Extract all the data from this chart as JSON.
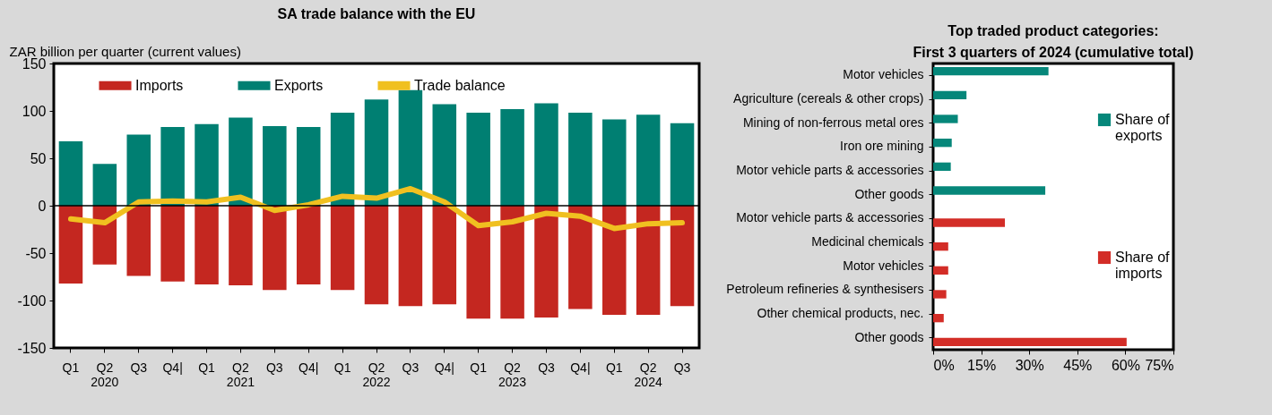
{
  "chart_data": [
    {
      "type": "bar",
      "title": "SA trade balance with the EU",
      "ylabel": "ZAR billion per quarter  (current values)",
      "categories": [
        "Q1",
        "Q2\n2020",
        "Q3",
        "Q4|",
        "Q1",
        "Q2\n2021",
        "Q3",
        "Q4|",
        "Q1",
        "Q2\n2022",
        "Q3",
        "Q4|",
        "Q1",
        "Q2\n2023",
        "Q3",
        "Q4|",
        "Q1",
        "Q2\n2024",
        "Q3"
      ],
      "series": [
        {
          "name": "Imports",
          "color": "#c42720",
          "values": [
            -82,
            -62,
            -74,
            -80,
            -83,
            -84,
            -89,
            -83,
            -89,
            -104,
            -106,
            -104,
            -119,
            -119,
            -118,
            -109,
            -115,
            -115,
            -106
          ]
        },
        {
          "name": "Exports",
          "color": "#007f72",
          "values": [
            68,
            44,
            75,
            83,
            86,
            93,
            84,
            83,
            98,
            112,
            122,
            107,
            98,
            102,
            108,
            98,
            91,
            96,
            87
          ]
        },
        {
          "name": "Trade balance",
          "type": "line",
          "color": "#f0c020",
          "values": [
            -14,
            -18,
            4,
            5,
            4,
            9,
            -5,
            1,
            10,
            8,
            18,
            4,
            -21,
            -17,
            -8,
            -11,
            -24,
            -19,
            -18
          ]
        }
      ],
      "stacked": true,
      "ylim": [
        -150,
        150
      ],
      "yticks": [
        -150,
        -100,
        -50,
        0,
        50,
        100,
        150
      ],
      "ref_lines": [
        {
          "axis": "y",
          "value": 0
        }
      ],
      "grid": false,
      "legend": "top",
      "marker": "none",
      "line_style": "solid"
    },
    {
      "type": "bar",
      "orientation": "horizontal",
      "title": "Top traded product categories:",
      "subtitle": "First 3 quarters of 2024 (cumulative total)",
      "categories": [
        "Motor vehicles",
        "Agriculture (cereals & other crops)",
        "Mining of non-ferrous metal ores",
        "Iron ore mining",
        "Motor vehicle parts & accessories",
        "Other goods",
        "Motor vehicle parts & accessories",
        "Medicinal chemicals",
        "Motor vehicles",
        "Petroleum refineries & synthesisers",
        "Other chemical products, nec.",
        "Other goods"
      ],
      "series": [
        {
          "name": "Share of exports",
          "color": "#06877a",
          "values": [
            36,
            10.4,
            7.7,
            5.8,
            5.5,
            35,
            null,
            null,
            null,
            null,
            null,
            null
          ]
        },
        {
          "name": "Share of imports",
          "color": "#d32d27",
          "values": [
            null,
            null,
            null,
            null,
            null,
            null,
            22.4,
            4.7,
            4.7,
            4.1,
            3.3,
            60.4
          ]
        }
      ],
      "xlim": [
        0,
        75
      ],
      "xticks": [
        {
          "value": 0,
          "label": "0%"
        },
        {
          "value": 15,
          "label": "15%"
        },
        {
          "value": 30,
          "label": "30%"
        },
        {
          "value": 45,
          "label": "45%"
        },
        {
          "value": 60,
          "label": "60%"
        },
        {
          "value": 75,
          "label": "75%"
        }
      ],
      "grid": false,
      "legend": "right"
    }
  ]
}
